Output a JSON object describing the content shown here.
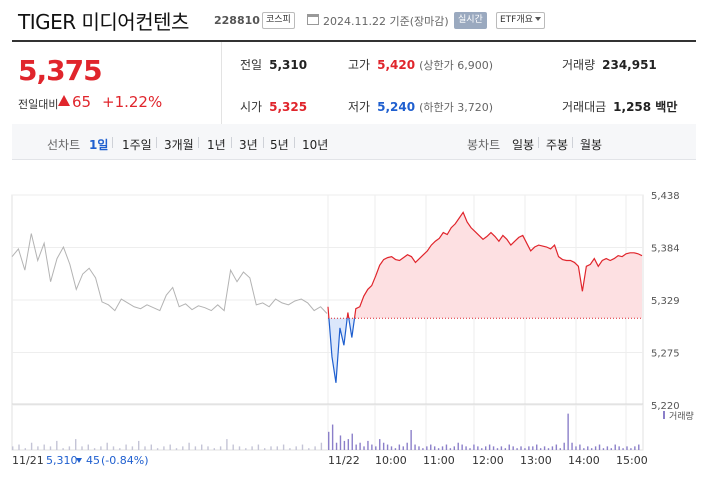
{
  "header": {
    "title": "TIGER 미디어컨텐츠",
    "code": "228810",
    "market": "코스피",
    "date": "2024.11.22 기준(장마감)",
    "realtime": "실시간",
    "etf": "ETF개요"
  },
  "quote": {
    "price": "5,375",
    "change_label": "전일대비",
    "change_amount": "65",
    "change_pct": "+1.22%",
    "stats": {
      "prev_close": {
        "label": "전일",
        "value": "5,310"
      },
      "high": {
        "label": "고가",
        "value": "5,420",
        "sub": "(상한가 6,900)"
      },
      "volume": {
        "label": "거래량",
        "value": "234,951"
      },
      "open": {
        "label": "시가",
        "value": "5,325"
      },
      "low": {
        "label": "저가",
        "value": "5,240",
        "sub": "(하한가 3,720)"
      },
      "amount": {
        "label": "거래대금",
        "value": "1,258 백만"
      }
    }
  },
  "tabs": {
    "line_label": "선차트",
    "line": [
      "1일",
      "1주일",
      "3개월",
      "1년",
      "3년",
      "5년",
      "10년"
    ],
    "candle_label": "봉차트",
    "candle": [
      "일봉",
      "주봉",
      "월봉"
    ]
  },
  "colors": {
    "up": "#e0252c",
    "down": "#1f5fcf",
    "accent": "#1f5fcf",
    "prev": "#b3b3b3"
  },
  "chart_data": {
    "type": "line",
    "y_ticks": [
      "5,438",
      "5,384",
      "5,329",
      "5,275",
      "5,220"
    ],
    "ylim": [
      5220,
      5438
    ],
    "baseline": 5310,
    "x_ticks": [
      "11/21",
      "11/22",
      "10:00",
      "11:00",
      "12:00",
      "13:00",
      "14:00",
      "15:00"
    ],
    "previous_day_caption": {
      "date": "11/21",
      "price": "5,310",
      "change": "45",
      "pct": "(-0.84%)"
    },
    "volume_legend": "거래량",
    "previous_day": [
      5374,
      5382,
      5360,
      5398,
      5370,
      5388,
      5348,
      5372,
      5384,
      5366,
      5340,
      5356,
      5362,
      5352,
      5327,
      5324,
      5318,
      5330,
      5326,
      5322,
      5320,
      5324,
      5321,
      5318,
      5334,
      5342,
      5322,
      5325,
      5319,
      5323,
      5321,
      5318,
      5324,
      5318,
      5360,
      5348,
      5358,
      5352,
      5324,
      5326,
      5322,
      5330,
      5326,
      5324,
      5328,
      5330,
      5326,
      5318,
      5322,
      5315
    ],
    "current_day": [
      5322,
      5270,
      5243,
      5300,
      5282,
      5316,
      5290,
      5320,
      5322,
      5333,
      5340,
      5344,
      5354,
      5365,
      5371,
      5373,
      5374,
      5371,
      5370,
      5373,
      5376,
      5374,
      5368,
      5372,
      5376,
      5380,
      5386,
      5390,
      5393,
      5399,
      5397,
      5404,
      5408,
      5414,
      5420,
      5410,
      5404,
      5400,
      5396,
      5392,
      5395,
      5399,
      5395,
      5390,
      5396,
      5392,
      5386,
      5390,
      5394,
      5396,
      5388,
      5380,
      5384,
      5386,
      5385,
      5384,
      5382,
      5386,
      5374,
      5371,
      5370,
      5370,
      5368,
      5364,
      5338,
      5364,
      5366,
      5372,
      5364,
      5370,
      5372,
      5370,
      5372,
      5375,
      5374,
      5377,
      5378,
      5378,
      5377,
      5375
    ],
    "volume_prev": [
      2,
      3,
      1,
      4,
      2,
      3,
      2,
      5,
      1,
      2,
      6,
      2,
      3,
      1,
      2,
      4,
      2,
      1,
      3,
      2,
      5,
      2,
      3,
      1,
      2,
      3,
      1,
      2,
      4,
      2,
      3,
      2,
      1,
      2,
      6,
      3,
      2,
      1,
      2,
      3,
      1,
      2,
      2,
      3,
      1,
      2,
      3,
      1,
      2,
      4
    ],
    "volume_curr": [
      10,
      14,
      4,
      8,
      5,
      6,
      9,
      3,
      4,
      2,
      5,
      3,
      2,
      6,
      4,
      3,
      2,
      1,
      3,
      2,
      4,
      11,
      3,
      2,
      1,
      2,
      3,
      2,
      1,
      2,
      3,
      1,
      2,
      4,
      3,
      2,
      1,
      3,
      2,
      1,
      2,
      3,
      2,
      1,
      2,
      1,
      3,
      2,
      1,
      2,
      1,
      2,
      2,
      3,
      1,
      2,
      1,
      2,
      3,
      1,
      4,
      20,
      4,
      2,
      3,
      1,
      2,
      1,
      2,
      3,
      1,
      2,
      1,
      3,
      2,
      1,
      2,
      1,
      2,
      3
    ]
  }
}
